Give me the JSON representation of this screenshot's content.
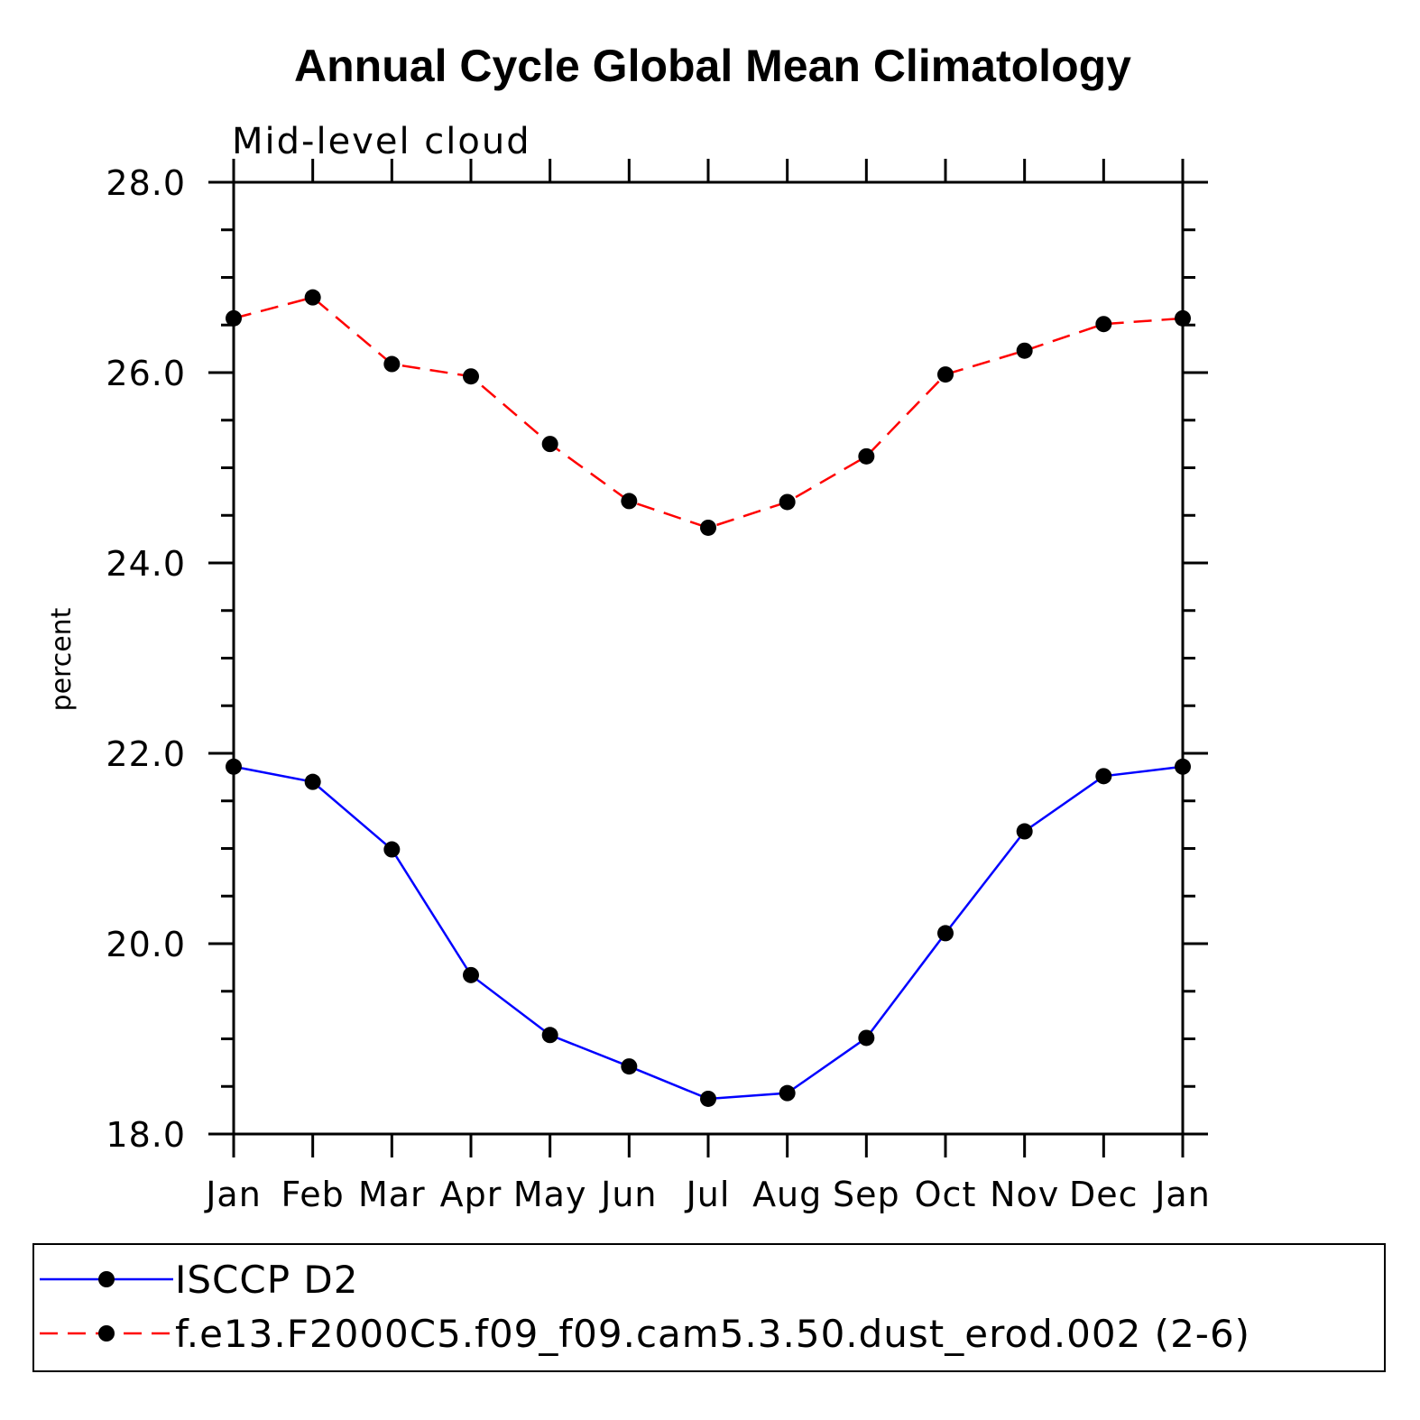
{
  "chart_data": {
    "type": "line",
    "title": "Annual Cycle Global Mean Climatology",
    "subtitle": "Mid-level cloud",
    "xlabel": "",
    "ylabel": "percent",
    "categories": [
      "Jan",
      "Feb",
      "Mar",
      "Apr",
      "May",
      "Jun",
      "Jul",
      "Aug",
      "Sep",
      "Oct",
      "Nov",
      "Dec",
      "Jan"
    ],
    "yticks": [
      "18.0",
      "20.0",
      "22.0",
      "24.0",
      "26.0",
      "28.0"
    ],
    "ylim": [
      18,
      28
    ],
    "grid": false,
    "legend_position": "bottom",
    "series": [
      {
        "name": "ISCCP D2",
        "color": "#0000ff",
        "dash": "solid",
        "values": [
          21.86,
          21.7,
          20.99,
          19.67,
          19.04,
          18.71,
          18.37,
          18.43,
          19.01,
          20.11,
          21.18,
          21.76,
          21.86
        ]
      },
      {
        "name": "f.e13.F2000C5.f09_f09.cam5.3.50.dust_erod.002 (2-6)",
        "color": "#ff0000",
        "dash": "dashed",
        "values": [
          26.57,
          26.79,
          26.09,
          25.96,
          25.25,
          24.65,
          24.37,
          24.64,
          25.12,
          25.98,
          26.23,
          26.51,
          26.57
        ]
      }
    ],
    "marker_color": "#000000"
  }
}
